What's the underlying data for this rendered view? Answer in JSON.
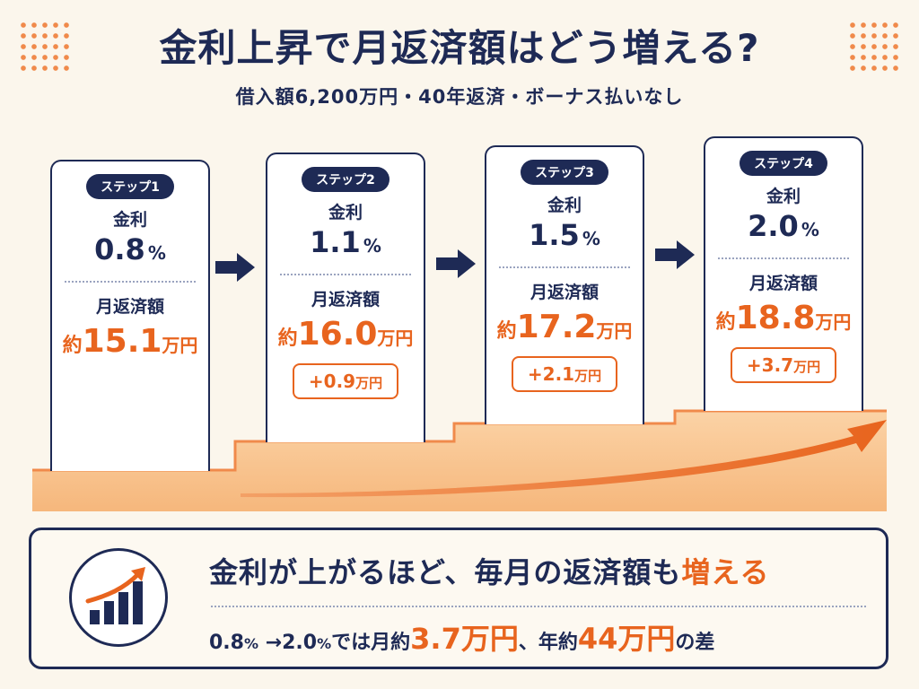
{
  "header": {
    "title": "金利上昇で月返済額はどう増える?",
    "subtitle": "借入額6,200万円・40年返済・ボーナス払いなし"
  },
  "labels": {
    "rate": "金利",
    "payment": "月返済額",
    "approx": "約",
    "unit_man": "万円",
    "pct": "%"
  },
  "steps": [
    {
      "badge": "ステップ1",
      "rate": "0.8",
      "payment": "15.1",
      "diff": ""
    },
    {
      "badge": "ステップ2",
      "rate": "1.1",
      "payment": "16.0",
      "diff": "+0.9"
    },
    {
      "badge": "ステップ3",
      "rate": "1.5",
      "payment": "17.2",
      "diff": "+2.1"
    },
    {
      "badge": "ステップ4",
      "rate": "2.0",
      "payment": "18.8",
      "diff": "+3.7"
    }
  ],
  "summary": {
    "headline_pre": "金利が上がるほど、毎月の返済額も",
    "headline_accent": "増える",
    "d1": "0.8",
    "d2": "%",
    "d3": " →2.0",
    "d4": "%",
    "d5": "では月約",
    "d6": "3.7",
    "d7": "万円",
    "d8": "、年約",
    "d9": "44",
    "d10": "万円",
    "d11": "の差"
  },
  "colors": {
    "navy": "#1e2a55",
    "orange": "#e8641e",
    "stair_fill": "#f9c795",
    "background": "#fbf6ec"
  },
  "icons": {
    "step_arrow": "right-arrow-icon",
    "summary": "rising-bar-chart-icon"
  }
}
